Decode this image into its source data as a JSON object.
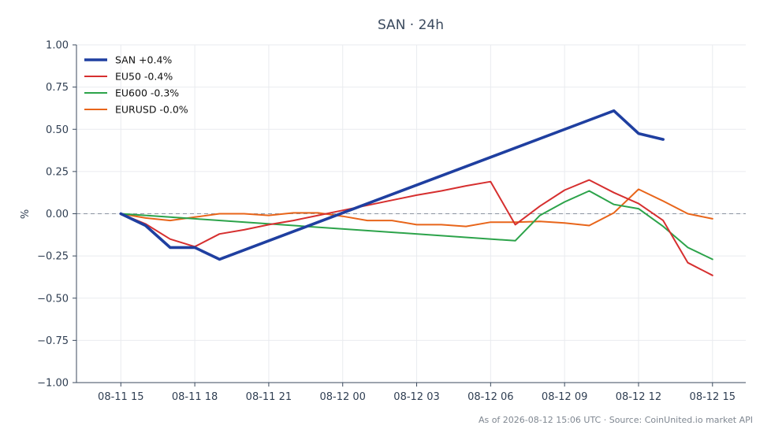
{
  "chart_data": {
    "type": "line",
    "title": "SAN · 24h",
    "ylabel": "%",
    "xlabel": "",
    "ylim": [
      -1.0,
      1.0
    ],
    "x_ticks_hours": [
      0,
      3,
      6,
      9,
      12,
      15,
      18,
      21,
      24
    ],
    "x_tick_labels": [
      "08-11 15",
      "08-11 18",
      "08-11 21",
      "08-12 00",
      "08-12 03",
      "08-12 06",
      "08-12 09",
      "08-12 12",
      "08-12 15"
    ],
    "y_ticks": [
      1.0,
      0.75,
      0.5,
      0.25,
      0.0,
      -0.25,
      -0.5,
      -0.75,
      -1.0
    ],
    "y_tick_labels": [
      "1.00",
      "0.75",
      "0.50",
      "0.25",
      "0.00",
      "−0.25",
      "−0.50",
      "−0.75",
      "−1.00"
    ],
    "grid": true,
    "zero_line": true,
    "legend_position": "top-left",
    "series": [
      {
        "name": "SAN +0.4%",
        "color": "#1f3fa0",
        "points": [
          [
            0,
            0.0
          ],
          [
            1,
            -0.07
          ],
          [
            2,
            -0.2
          ],
          [
            3,
            -0.2
          ],
          [
            4,
            -0.27
          ],
          [
            20,
            0.61
          ],
          [
            21,
            0.475
          ],
          [
            22,
            0.44
          ]
        ]
      },
      {
        "name": "EU50 -0.4%",
        "color": "#d62f2f",
        "points": [
          [
            0,
            0.0
          ],
          [
            1,
            -0.06
          ],
          [
            2,
            -0.15
          ],
          [
            3,
            -0.195
          ],
          [
            4,
            -0.12
          ],
          [
            5,
            -0.095
          ],
          [
            6,
            -0.065
          ],
          [
            7,
            -0.04
          ],
          [
            8,
            -0.01
          ],
          [
            9,
            0.02
          ],
          [
            10,
            0.05
          ],
          [
            11,
            0.08
          ],
          [
            12,
            0.11
          ],
          [
            13,
            0.135
          ],
          [
            14,
            0.165
          ],
          [
            15,
            0.19
          ],
          [
            16,
            -0.065
          ],
          [
            17,
            0.045
          ],
          [
            18,
            0.14
          ],
          [
            19,
            0.2
          ],
          [
            20,
            0.125
          ],
          [
            21,
            0.06
          ],
          [
            22,
            -0.04
          ],
          [
            23,
            -0.29
          ],
          [
            24,
            -0.365
          ]
        ]
      },
      {
        "name": "EU600 -0.3%",
        "color": "#2ca34a",
        "points": [
          [
            0,
            0.0
          ],
          [
            3,
            -0.03
          ],
          [
            16,
            -0.16
          ],
          [
            17,
            -0.01
          ],
          [
            18,
            0.07
          ],
          [
            19,
            0.135
          ],
          [
            20,
            0.055
          ],
          [
            21,
            0.03
          ],
          [
            22,
            -0.075
          ],
          [
            23,
            -0.2
          ],
          [
            24,
            -0.27
          ]
        ]
      },
      {
        "name": "EURUSD -0.0%",
        "color": "#e8651a",
        "points": [
          [
            0,
            0.0
          ],
          [
            1,
            -0.025
          ],
          [
            2,
            -0.04
          ],
          [
            3,
            -0.02
          ],
          [
            4,
            0.0
          ],
          [
            5,
            0.0
          ],
          [
            6,
            -0.01
          ],
          [
            7,
            0.005
          ],
          [
            8,
            0.005
          ],
          [
            9,
            -0.015
          ],
          [
            10,
            -0.04
          ],
          [
            11,
            -0.04
          ],
          [
            12,
            -0.065
          ],
          [
            13,
            -0.065
          ],
          [
            14,
            -0.075
          ],
          [
            15,
            -0.05
          ],
          [
            16,
            -0.05
          ],
          [
            17,
            -0.045
          ],
          [
            18,
            -0.055
          ],
          [
            19,
            -0.07
          ],
          [
            20,
            0.005
          ],
          [
            21,
            0.145
          ],
          [
            22,
            0.075
          ],
          [
            23,
            0.0
          ],
          [
            24,
            -0.03
          ]
        ]
      }
    ]
  },
  "footer": "As of 2026-08-12 15:06 UTC · Source: CoinUnited.io market API"
}
